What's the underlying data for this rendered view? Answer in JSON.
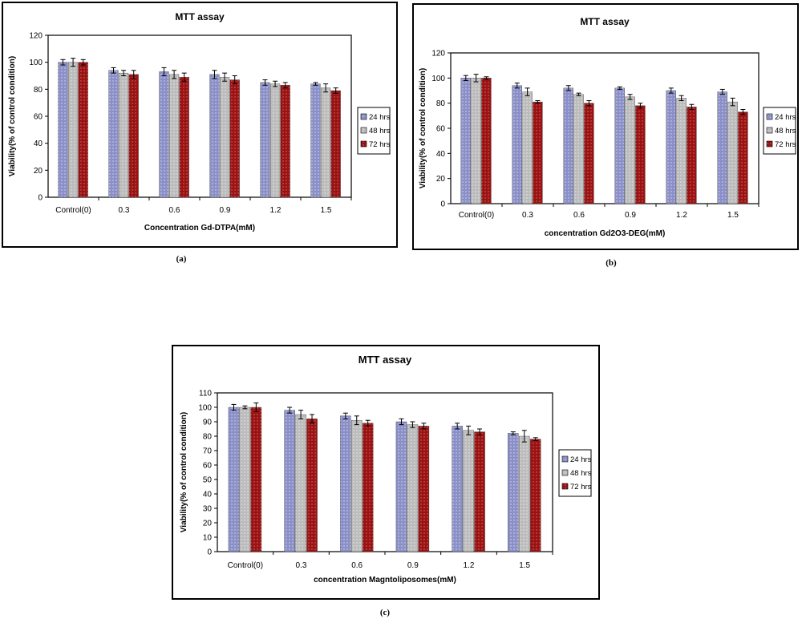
{
  "charts": [
    {
      "caption": "(a)",
      "chart_data": {
        "type": "bar",
        "title": "MTT assay",
        "xlabel": "Concentration Gd-DTPA(mM)",
        "ylabel": "Viability(% of control condition)",
        "categories": [
          "Control(0)",
          "0.3",
          "0.6",
          "0.9",
          "1.2",
          "1.5"
        ],
        "ylim": [
          0,
          120
        ],
        "yticks": [
          0,
          20,
          40,
          60,
          80,
          100,
          120
        ],
        "grid": false,
        "legend": "right",
        "series": [
          {
            "name": "24 hrs",
            "color": "#8a8fc8",
            "values": [
              100,
              94,
              93,
              91,
              85,
              84
            ],
            "errors": [
              2,
              2,
              3,
              3,
              2,
              1
            ]
          },
          {
            "name": "48 hrs",
            "color": "#bcbcbc",
            "values": [
              100,
              92,
              91,
              89,
              84,
              81
            ],
            "errors": [
              3,
              2,
              3,
              3,
              2,
              3
            ]
          },
          {
            "name": "72 hrs",
            "color": "#9b1212",
            "values": [
              100,
              91,
              89,
              87,
              83,
              79
            ],
            "errors": [
              2,
              3,
              3,
              3,
              2,
              2
            ]
          }
        ]
      }
    },
    {
      "caption": "(b)",
      "chart_data": {
        "type": "bar",
        "title": "MTT assay",
        "xlabel": "concentration Gd2O3-DEG(mM)",
        "ylabel": "Viability(% of control condition)",
        "categories": [
          "Control(0)",
          "0.3",
          "0.6",
          "0.9",
          "1.2",
          "1.5"
        ],
        "ylim": [
          0,
          120
        ],
        "yticks": [
          0,
          20,
          40,
          60,
          80,
          100,
          120
        ],
        "grid": false,
        "legend": "right",
        "series": [
          {
            "name": "24 hrs",
            "color": "#8a8fc8",
            "values": [
              100,
              94,
              92,
              92,
              90,
              89
            ],
            "errors": [
              2,
              2,
              2,
              1,
              2,
              2
            ]
          },
          {
            "name": "48 hrs",
            "color": "#bcbcbc",
            "values": [
              100,
              89,
              87,
              85,
              84,
              81
            ],
            "errors": [
              3,
              3,
              1,
              2,
              2,
              3
            ]
          },
          {
            "name": "72 hrs",
            "color": "#9b1212",
            "values": [
              100,
              81,
              80,
              78,
              77,
              73
            ],
            "errors": [
              1,
              1,
              2,
              2,
              2,
              2
            ]
          }
        ]
      }
    },
    {
      "caption": "(c)",
      "chart_data": {
        "type": "bar",
        "title": "MTT assay",
        "xlabel": "concentration Magntoliposomes(mM)",
        "ylabel": "Viability(% of control condition)",
        "categories": [
          "Control(0)",
          "0.3",
          "0.6",
          "0.9",
          "1.2",
          "1.5"
        ],
        "ylim": [
          0,
          110
        ],
        "yticks": [
          0,
          10,
          20,
          30,
          40,
          50,
          60,
          70,
          80,
          90,
          100,
          110
        ],
        "grid": false,
        "legend": "right",
        "series": [
          {
            "name": "24 hrs",
            "color": "#8a8fc8",
            "values": [
              100,
              98,
              94,
              90,
              87,
              82
            ],
            "errors": [
              2,
              2,
              2,
              2,
              2,
              1
            ]
          },
          {
            "name": "48 hrs",
            "color": "#bcbcbc",
            "values": [
              100,
              95,
              91,
              88,
              84,
              80
            ],
            "errors": [
              1,
              3,
              3,
              2,
              3,
              4
            ]
          },
          {
            "name": "72 hrs",
            "color": "#9b1212",
            "values": [
              100,
              92,
              89,
              87,
              83,
              78
            ],
            "errors": [
              3,
              3,
              2,
              2,
              2,
              1
            ]
          }
        ]
      }
    }
  ]
}
